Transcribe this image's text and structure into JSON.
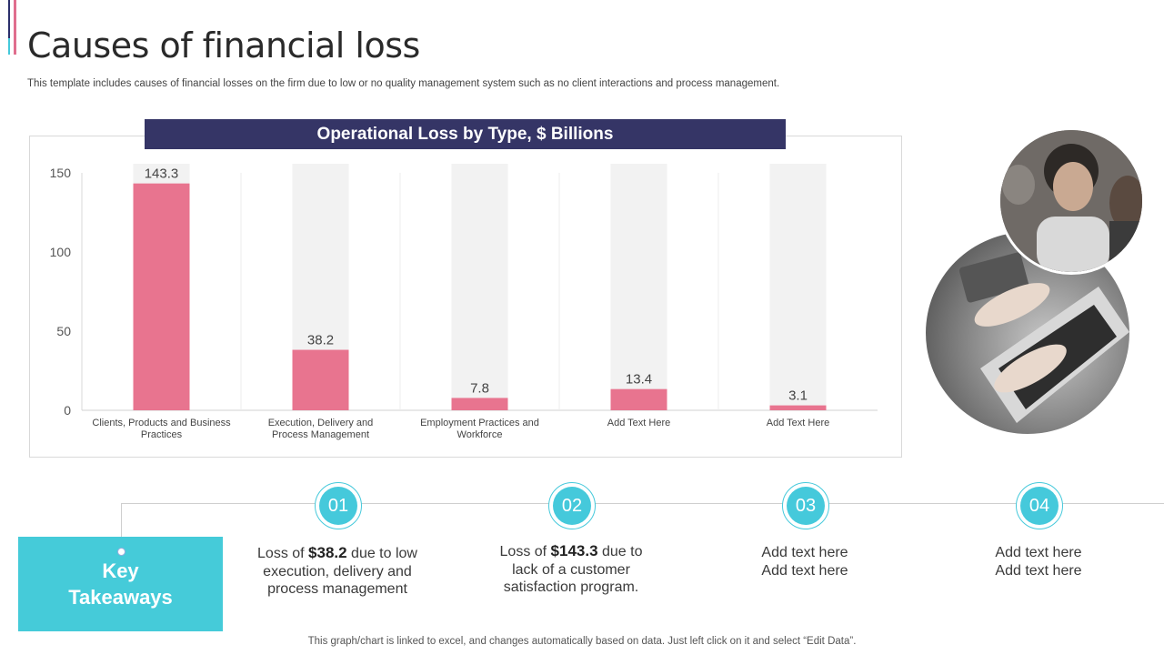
{
  "page": {
    "title": "Causes of financial loss",
    "subtitle": "This template includes causes of financial losses on the firm due to low or no quality management system such as no client interactions and process management."
  },
  "chart_data": {
    "type": "bar",
    "title": "Operational Loss by Type, $ Billions",
    "categories": [
      "Clients, Products and Business Practices",
      "Execution, Delivery and Process Management",
      "Employment Practices and Workforce",
      "Add Text Here",
      "Add Text Here"
    ],
    "values": [
      143.3,
      38.2,
      7.8,
      13.4,
      3.1
    ],
    "value_labels": [
      "143.3",
      "38.2",
      "7.8",
      "13.4",
      "3.1"
    ],
    "yticks": [
      0,
      50,
      100,
      150
    ],
    "ylim": [
      0,
      155
    ],
    "bar_color": "#e8748f",
    "track_color": "#f2f2f2",
    "header_color": "#353566"
  },
  "takeaways": {
    "label_line1": "Key",
    "label_line2": "Takeaways",
    "items": [
      {
        "num": "01",
        "pre": "Loss of ",
        "bold": "$38.2",
        "post": " due to low execution, delivery and process management"
      },
      {
        "num": "02",
        "pre": "Loss of ",
        "bold": "$143.3",
        "post": " due to lack of a customer satisfaction program."
      },
      {
        "num": "03",
        "pre": "",
        "bold": "",
        "post": "Add text here Add text here"
      },
      {
        "num": "04",
        "pre": "",
        "bold": "",
        "post": "Add text here Add text here"
      }
    ]
  },
  "images": {
    "photo1": "team-photo",
    "photo2": "laptop-typing-photo"
  },
  "colors": {
    "accent_navy": "#2b2f6b",
    "accent_pink": "#e06e8e",
    "accent_cyan": "#45c9db"
  },
  "footer": "This graph/chart is linked to excel, and changes automatically based on data. Just left click on it and select “Edit Data”."
}
